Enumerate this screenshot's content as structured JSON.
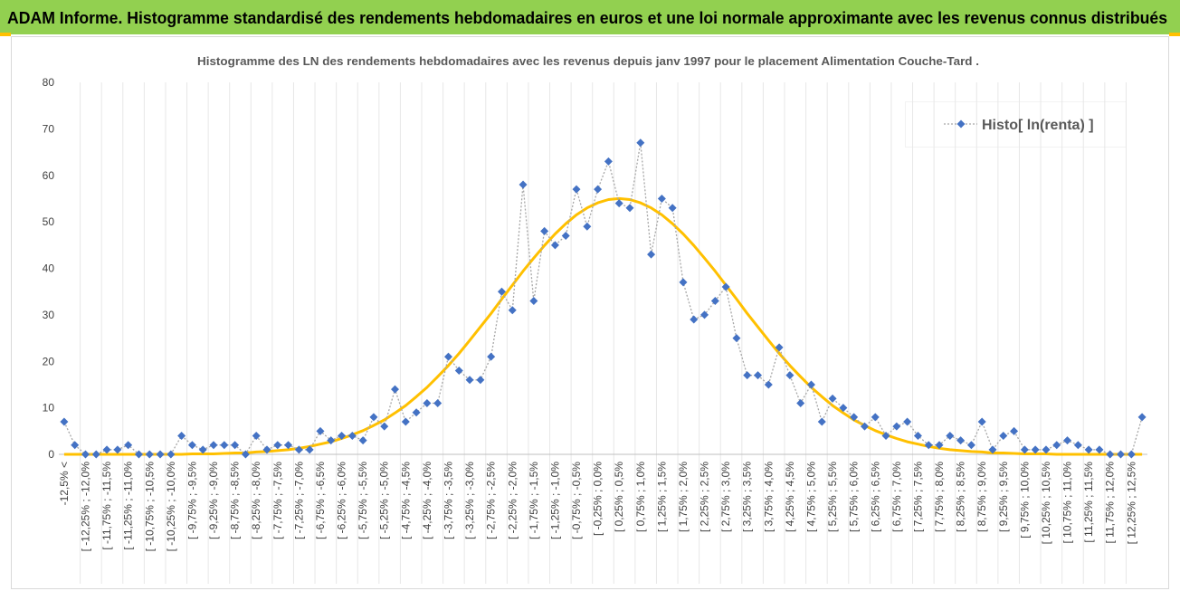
{
  "header": {
    "title": "ADAM Informe. Histogramme standardisé des rendements hebdomadaires en euros et une loi normale approximante avec les revenus connus distribués"
  },
  "chart_data": {
    "type": "line",
    "title": "Histogramme des LN des rendements hebdomadaires avec les revenus depuis janv 1997 pour le placement Alimentation Couche-Tard .",
    "categories": [
      "-12,5% <",
      null,
      "[ -12,25% ; -12,0%",
      null,
      "[ -11,75% ; -11,5%",
      null,
      "[ -11,25% ; -11,0%",
      null,
      "[ -10,75% ; -10,5%",
      null,
      "[ -10,25% ; -10,0%",
      null,
      "[ -9,75% ; -9,5%",
      null,
      "[ -9,25% ; -9,0%",
      null,
      "[ -8,75% ; -8,5%",
      null,
      "[ -8,25% ; -8,0%",
      null,
      "[ -7,75% ; -7,5%",
      null,
      "[ -7,25% ; -7,0%",
      null,
      "[ -6,75% ; -6,5%",
      null,
      "[ -6,25% ; -6,0%",
      null,
      "[ -5,75% ; -5,5%",
      null,
      "[ -5,25% ; -5,0%",
      null,
      "[ -4,75% ; -4,5%",
      null,
      "[ -4,25% ; -4,0%",
      null,
      "[ -3,75% ; -3,5%",
      null,
      "[ -3,25% ; -3,0%",
      null,
      "[ -2,75% ; -2,5%",
      null,
      "[ -2,25% ; -2,0%",
      null,
      "[ -1,75% ; -1,5%",
      null,
      "[ -1,25% ; -1,0%",
      null,
      "[ -0,75% ; -0,5%",
      null,
      "[ -0,25% ; 0,0%",
      null,
      "[ 0,25% ; 0,5%",
      null,
      "[ 0,75% ; 1,0%",
      null,
      "[ 1,25% ; 1,5%",
      null,
      "[ 1,75% ; 2,0%",
      null,
      "[ 2,25% ; 2,5%",
      null,
      "[ 2,75% ; 3,0%",
      null,
      "[ 3,25% ; 3,5%",
      null,
      "[ 3,75% ; 4,0%",
      null,
      "[ 4,25% ; 4,5%",
      null,
      "[ 4,75% ; 5,0%",
      null,
      "[ 5,25% ; 5,5%",
      null,
      "[ 5,75% ; 6,0%",
      null,
      "[ 6,25% ; 6,5%",
      null,
      "[ 6,75% ; 7,0%",
      null,
      "[ 7,25% ; 7,5%",
      null,
      "[ 7,75% ; 8,0%",
      null,
      "[ 8,25% ; 8,5%",
      null,
      "[ 8,75% ; 9,0%",
      null,
      "[ 9,25% ; 9,5%",
      null,
      "[ 9,75% ; 10,0%",
      null,
      "[ 10,25% ; 10,5%",
      null,
      "[ 10,75% ; 11,0%",
      null,
      "[ 11,25% ; 11,5%",
      null,
      "[ 11,75% ; 12,0%",
      null,
      "[ 12,25% ; 12,5%",
      null
    ],
    "series": [
      {
        "name": "Histo[ ln(renta) ]",
        "color": "#4472c4",
        "line_color": "#a6a6a6",
        "values": [
          7,
          2,
          0,
          0,
          1,
          1,
          2,
          0,
          0,
          0,
          0,
          4,
          2,
          1,
          2,
          2,
          2,
          0,
          4,
          1,
          2,
          2,
          1,
          1,
          5,
          3,
          4,
          4,
          3,
          8,
          6,
          14,
          7,
          9,
          11,
          11,
          21,
          18,
          16,
          16,
          21,
          35,
          31,
          58,
          33,
          48,
          45,
          47,
          57,
          49,
          57,
          63,
          54,
          53,
          67,
          43,
          55,
          53,
          37,
          29,
          30,
          33,
          36,
          25,
          17,
          17,
          15,
          23,
          17,
          11,
          15,
          7,
          12,
          10,
          8,
          6,
          8,
          4,
          6,
          7,
          4,
          2,
          2,
          4,
          3,
          2,
          7,
          1,
          4,
          5,
          1,
          1,
          1,
          2,
          3,
          2,
          1,
          1,
          0,
          0,
          0,
          8
        ]
      },
      {
        "color": "#ffc000",
        "values": [
          0,
          0,
          0,
          0,
          0,
          0,
          0,
          0,
          0,
          0,
          0,
          0,
          0.1,
          0.1,
          0.1,
          0.2,
          0.3,
          0.3,
          0.5,
          0.6,
          0.8,
          1.0,
          1.3,
          1.7,
          2.2,
          2.7,
          3.4,
          4.2,
          5.1,
          6.2,
          7.4,
          8.9,
          10.5,
          12.4,
          14.4,
          16.7,
          19.1,
          21.7,
          24.5,
          27.4,
          30.3,
          33.4,
          36.4,
          39.4,
          42.2,
          44.9,
          47.4,
          49.6,
          51.5,
          53.0,
          54.1,
          54.8,
          55,
          54.8,
          54.1,
          53.0,
          51.5,
          49.6,
          47.4,
          44.9,
          42.2,
          39.4,
          36.4,
          33.4,
          30.3,
          27.4,
          24.5,
          21.7,
          19.1,
          16.7,
          14.4,
          12.4,
          10.5,
          8.9,
          7.4,
          6.2,
          5.1,
          4.2,
          3.4,
          2.7,
          2.2,
          1.7,
          1.3,
          1.0,
          0.8,
          0.6,
          0.5,
          0.3,
          0.3,
          0.2,
          0.1,
          0.1,
          0.1,
          0,
          0,
          0,
          0,
          0,
          0,
          0,
          0,
          0
        ]
      }
    ],
    "ylim": [
      0,
      80
    ],
    "yticks": [
      0,
      10,
      20,
      30,
      40,
      50,
      60,
      70,
      80
    ],
    "legend": "top-right"
  }
}
